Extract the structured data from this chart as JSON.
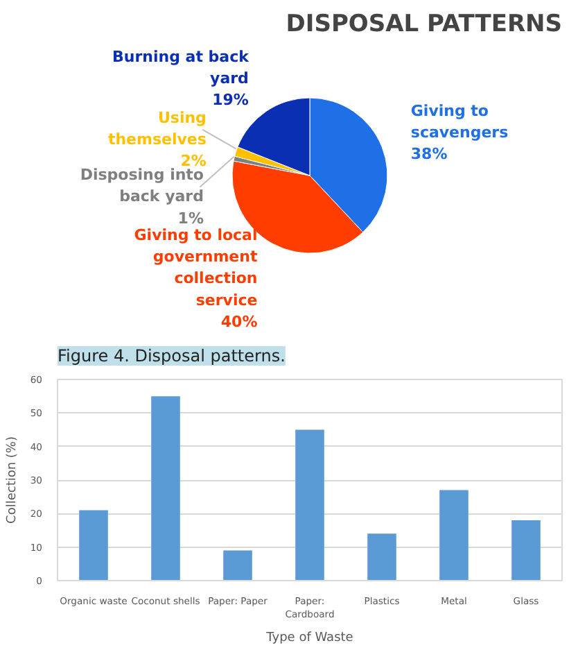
{
  "chart_data": [
    {
      "type": "pie",
      "title": "DISPOSAL PATTERNS",
      "categories": [
        "Giving to scavengers",
        "Giving to local government collection service",
        "Disposing into back yard",
        "Using themselves",
        "Burning at back yard"
      ],
      "values": [
        38,
        40,
        1,
        2,
        19
      ],
      "colors": [
        "#1f6fe6",
        "#ff3d00",
        "#7f7f7f",
        "#ffc000",
        "#0a2fb3"
      ],
      "value_labels": [
        "38%",
        "40%",
        "1%",
        "2%",
        "19%"
      ],
      "annotations": [
        "Figure 4. Disposal patterns."
      ]
    },
    {
      "type": "bar",
      "categories": [
        "Organic waste",
        "Coconut shells",
        "Paper: Paper",
        "Paper: Cardboard",
        "Plastics",
        "Metal",
        "Glass"
      ],
      "values": [
        21,
        55,
        9,
        45,
        14,
        27,
        18
      ],
      "color": "#5b9bd5",
      "xlabel": "Type of Waste",
      "ylabel": "Collection (%)",
      "ylim": [
        0,
        60
      ],
      "yticks": [
        0,
        10,
        20,
        30,
        40,
        50,
        60
      ],
      "grid": "y"
    }
  ]
}
